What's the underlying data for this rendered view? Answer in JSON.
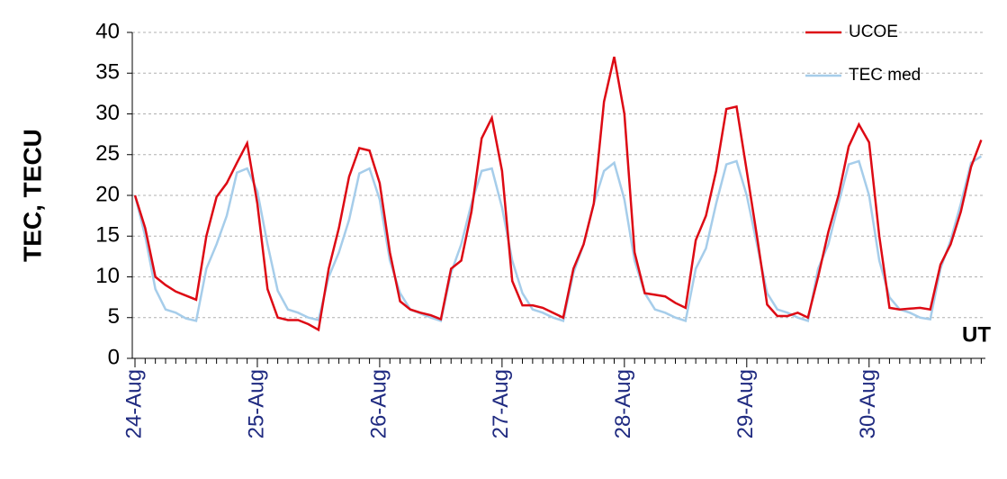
{
  "chart_data": {
    "type": "line",
    "y_label": "TEC, TECU",
    "x_annotation": "UT",
    "categories": [
      "24-Aug",
      null,
      null,
      null,
      null,
      null,
      null,
      null,
      null,
      null,
      null,
      null,
      "25-Aug",
      null,
      null,
      null,
      null,
      null,
      null,
      null,
      null,
      null,
      null,
      null,
      "26-Aug",
      null,
      null,
      null,
      null,
      null,
      null,
      null,
      null,
      null,
      null,
      null,
      "27-Aug",
      null,
      null,
      null,
      null,
      null,
      null,
      null,
      null,
      null,
      null,
      null,
      "28-Aug",
      null,
      null,
      null,
      null,
      null,
      null,
      null,
      null,
      null,
      null,
      null,
      "29-Aug",
      null,
      null,
      null,
      null,
      null,
      null,
      null,
      null,
      null,
      null,
      null,
      "30-Aug",
      null,
      null,
      null,
      null,
      null,
      null,
      null,
      null,
      null,
      null,
      null
    ],
    "series": [
      {
        "name": "UCOE",
        "color": "#dd0a14",
        "values": [
          20,
          16,
          10,
          9,
          8.2,
          7.7,
          7.2,
          15,
          19.8,
          21.5,
          24,
          26.4,
          19,
          8.5,
          5,
          4.7,
          4.7,
          4.2,
          3.5,
          11,
          16,
          22.3,
          25.8,
          25.5,
          21.5,
          13,
          7,
          6,
          5.6,
          5.3,
          4.8,
          11,
          12,
          18,
          27,
          29.5,
          23,
          9.5,
          6.5,
          6.5,
          6.2,
          5.6,
          5,
          11,
          14,
          19,
          31.5,
          37,
          30,
          13,
          8,
          7.8,
          7.6,
          6.8,
          6.2,
          14.5,
          17.5,
          23,
          30.6,
          30.9,
          23,
          15,
          6.6,
          5.2,
          5.2,
          5.6,
          5,
          10,
          15.5,
          20,
          26,
          28.7,
          26.5,
          15,
          6.2,
          6,
          6.1,
          6.2,
          6,
          11.5,
          14,
          18,
          23.5,
          26.8
        ]
      },
      {
        "name": "TEC med",
        "color": "#a6cdea",
        "values": [
          20,
          15,
          8.5,
          6,
          5.6,
          4.9,
          4.6,
          11,
          14,
          17.5,
          22.8,
          23.3,
          20.5,
          14,
          8.3,
          6,
          5.6,
          5,
          4.7,
          10,
          13,
          17,
          22.7,
          23.3,
          19.5,
          12,
          8,
          6,
          5.5,
          5,
          4.6,
          10.5,
          14,
          19,
          23,
          23.3,
          18.5,
          12,
          8,
          6,
          5.6,
          5,
          4.6,
          10.5,
          14,
          19,
          23,
          24,
          19.5,
          12,
          8,
          6,
          5.6,
          5,
          4.6,
          11,
          13.5,
          19,
          23.8,
          24.2,
          20,
          14,
          8,
          6,
          5.6,
          5,
          4.6,
          11,
          14,
          19,
          23.8,
          24.2,
          20,
          12,
          7.5,
          6,
          5.6,
          5,
          4.8,
          11,
          14.5,
          19,
          24,
          24.8
        ]
      }
    ],
    "ylim": [
      0,
      40
    ],
    "yticks": [
      0,
      5,
      10,
      15,
      20,
      25,
      30,
      35,
      40
    ],
    "grid": true,
    "legend": "top-right"
  }
}
